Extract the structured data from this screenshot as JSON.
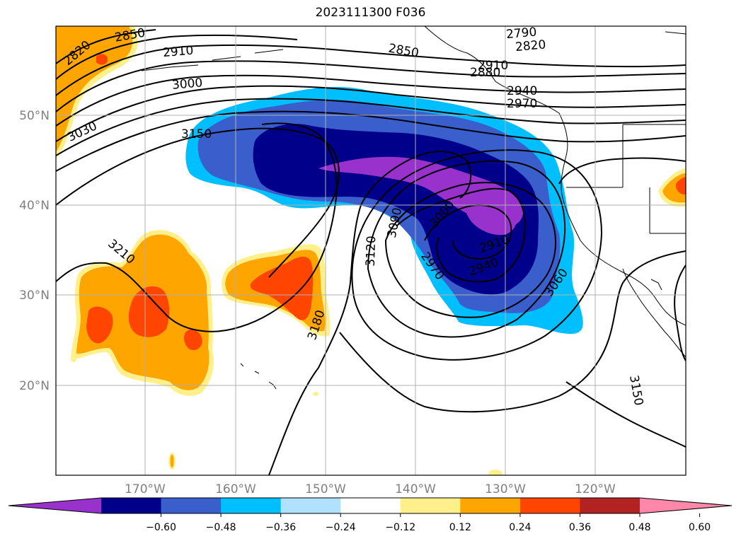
{
  "title": "2023111300 F036",
  "map": {
    "lat_labels": [
      "50°N",
      "40°N",
      "30°N",
      "20°N"
    ],
    "lon_labels": [
      "170°W",
      "160°W",
      "150°W",
      "140°W",
      "130°W",
      "120°W"
    ],
    "contour_labels": [
      "2820",
      "2850",
      "2910",
      "3000",
      "3030",
      "3150",
      "3210",
      "3180",
      "3120",
      "3090",
      "3000",
      "2970",
      "2940",
      "2910",
      "3060",
      "3150",
      "2790",
      "2820",
      "2850",
      "2880",
      "2910",
      "2940",
      "2970"
    ]
  },
  "colorbar": {
    "ticks": [
      "−0.60",
      "−0.48",
      "−0.36",
      "−0.24",
      "−0.12",
      "0.12",
      "0.24",
      "0.36",
      "0.48",
      "0.60"
    ],
    "colors": [
      "#9932cc",
      "#00008b",
      "#3a5fcd",
      "#00bfff",
      "#b0e2ff",
      "#ffffff",
      "#fff08c",
      "#ffa500",
      "#ff4500",
      "#b22222",
      "#ff88aa"
    ]
  }
}
